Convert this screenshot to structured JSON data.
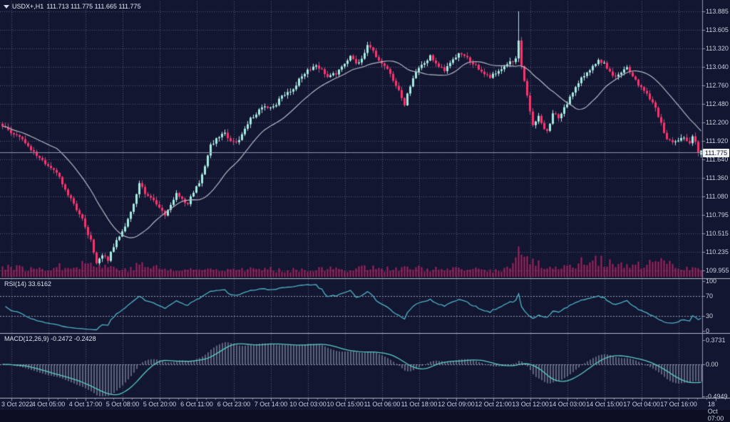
{
  "window": {
    "symbol": "USDX+,H1",
    "ohlc_text": "111.713 111.775 111.665 111.775"
  },
  "chart": {
    "current_price": "111.775"
  },
  "price_axis": {
    "labels": [
      "113.885",
      "113.605",
      "113.320",
      "113.040",
      "112.760",
      "112.480",
      "112.200",
      "111.920",
      "111.640",
      "111.360",
      "111.080",
      "110.795",
      "110.515",
      "110.235",
      "109.955"
    ]
  },
  "time_axis": {
    "labels": [
      "3 Oct 2022",
      "4 Oct 05:00",
      "4 Oct 17:00",
      "5 Oct 08:00",
      "5 Oct 20:00",
      "6 Oct 11:00",
      "6 Oct 23:00",
      "7 Oct 14:00",
      "10 Oct 03:00",
      "10 Oct 15:00",
      "11 Oct 06:00",
      "11 Oct 18:00",
      "12 Oct 09:00",
      "12 Oct 21:00",
      "13 Oct 12:00",
      "14 Oct 03:00",
      "14 Oct 15:00",
      "17 Oct 04:00",
      "17 Oct 16:00",
      "18 Oct 07:00"
    ]
  },
  "rsi": {
    "label": "RSI(14) 33.6162",
    "scale": [
      {
        "label": "100",
        "value": 100
      },
      {
        "label": "70",
        "value": 70
      },
      {
        "label": "30",
        "value": 30
      },
      {
        "label": "0",
        "value": 0
      }
    ],
    "levels": [
      70,
      30
    ]
  },
  "macd": {
    "label": "MACD(12,26,9) -0.2472 -0.2428",
    "scale": [
      {
        "label": "0.3731",
        "value": 0.3731
      },
      {
        "label": "0.00",
        "value": 0
      },
      {
        "label": "-0.4949",
        "value": -0.4949
      }
    ]
  },
  "colors": {
    "background": "#121631",
    "grid": "#6a7190",
    "level_line": "#9aa0b6",
    "bull_candle": "#a9e9e1",
    "bear_candle": "#f2376f",
    "volume": "#a8215e",
    "ma_line": "#b5b8c4",
    "bid_line": "#8e94ae",
    "rsi_line": "#4fb3c8",
    "macd_line": "#5accc6",
    "macd_hist": "#a9afc4",
    "separator": "#b6b9c8",
    "scale_border": "#9298b0",
    "axis_text": "#ccd1e0",
    "badge_bg": "#f2f3f6",
    "badge_text": "#12142a"
  },
  "chart_data": {
    "type": "candlestick",
    "symbol": "USDX+",
    "timeframe": "H1",
    "x_range": [
      "3 Oct 2022",
      "18 Oct 07:00"
    ],
    "y_range": [
      109.955,
      113.885
    ],
    "candles_count": 246,
    "note": "hourly candles; close values sampled from chart as keyframes [index, close], intermediate candles interpolated",
    "close_keyframes": [
      [
        0,
        112.15
      ],
      [
        4,
        112.02
      ],
      [
        8,
        111.9
      ],
      [
        12,
        111.68
      ],
      [
        16,
        111.55
      ],
      [
        19,
        111.45
      ],
      [
        22,
        111.18
      ],
      [
        25,
        110.95
      ],
      [
        28,
        110.72
      ],
      [
        31,
        110.4
      ],
      [
        33,
        110.08
      ],
      [
        35,
        110.18
      ],
      [
        37,
        110.12
      ],
      [
        40,
        110.42
      ],
      [
        43,
        110.62
      ],
      [
        46,
        110.95
      ],
      [
        48,
        111.3
      ],
      [
        50,
        111.12
      ],
      [
        53,
        111.02
      ],
      [
        57,
        110.8
      ],
      [
        59,
        110.95
      ],
      [
        61,
        111.12
      ],
      [
        63,
        111.02
      ],
      [
        65,
        110.98
      ],
      [
        67,
        111.15
      ],
      [
        69,
        111.3
      ],
      [
        71,
        111.55
      ],
      [
        73,
        111.85
      ],
      [
        76,
        112.0
      ],
      [
        78,
        112.02
      ],
      [
        80,
        111.92
      ],
      [
        82,
        111.88
      ],
      [
        85,
        112.1
      ],
      [
        87,
        112.25
      ],
      [
        90,
        112.38
      ],
      [
        92,
        112.45
      ],
      [
        95,
        112.42
      ],
      [
        97,
        112.55
      ],
      [
        100,
        112.65
      ],
      [
        102,
        112.72
      ],
      [
        105,
        112.9
      ],
      [
        107,
        113.0
      ],
      [
        110,
        113.05
      ],
      [
        112,
        113.02
      ],
      [
        114,
        112.88
      ],
      [
        117,
        112.95
      ],
      [
        119,
        113.05
      ],
      [
        122,
        113.2
      ],
      [
        124,
        113.1
      ],
      [
        126,
        113.15
      ],
      [
        128,
        113.38
      ],
      [
        130,
        113.28
      ],
      [
        132,
        113.15
      ],
      [
        134,
        113.05
      ],
      [
        136,
        112.92
      ],
      [
        139,
        112.7
      ],
      [
        141,
        112.48
      ],
      [
        143,
        112.75
      ],
      [
        145,
        112.98
      ],
      [
        148,
        113.1
      ],
      [
        150,
        113.2
      ],
      [
        153,
        113.05
      ],
      [
        155,
        113.0
      ],
      [
        157,
        113.12
      ],
      [
        159,
        113.2
      ],
      [
        161,
        113.25
      ],
      [
        163,
        113.18
      ],
      [
        165,
        113.1
      ],
      [
        168,
        112.95
      ],
      [
        171,
        112.88
      ],
      [
        174,
        113.0
      ],
      [
        177,
        113.08
      ],
      [
        180,
        113.15
      ],
      [
        181,
        113.45
      ],
      [
        182,
        113.05
      ],
      [
        183,
        112.85
      ],
      [
        184,
        112.6
      ],
      [
        186,
        112.15
      ],
      [
        188,
        112.28
      ],
      [
        190,
        112.12
      ],
      [
        191,
        112.05
      ],
      [
        193,
        112.35
      ],
      [
        195,
        112.28
      ],
      [
        197,
        112.42
      ],
      [
        199,
        112.58
      ],
      [
        201,
        112.72
      ],
      [
        203,
        112.88
      ],
      [
        205,
        112.95
      ],
      [
        207,
        113.05
      ],
      [
        209,
        113.15
      ],
      [
        211,
        113.1
      ],
      [
        213,
        112.95
      ],
      [
        215,
        112.88
      ],
      [
        217,
        112.95
      ],
      [
        219,
        113.02
      ],
      [
        221,
        112.88
      ],
      [
        223,
        112.78
      ],
      [
        225,
        112.68
      ],
      [
        227,
        112.55
      ],
      [
        229,
        112.42
      ],
      [
        231,
        112.18
      ],
      [
        233,
        111.95
      ],
      [
        235,
        111.88
      ],
      [
        237,
        111.92
      ],
      [
        239,
        111.98
      ],
      [
        241,
        111.9
      ],
      [
        242,
        112.0
      ],
      [
        243,
        111.92
      ],
      [
        244,
        111.72
      ],
      [
        245,
        111.775
      ]
    ],
    "spike": {
      "index": 181,
      "high": 113.885
    },
    "last_candle": {
      "open": 111.713,
      "high": 111.775,
      "low": 111.665,
      "close": 111.775
    },
    "volume_keyframes": [
      [
        0,
        0.45
      ],
      [
        10,
        0.3
      ],
      [
        20,
        0.4
      ],
      [
        30,
        0.55
      ],
      [
        34,
        0.45
      ],
      [
        45,
        0.3
      ],
      [
        48,
        0.5
      ],
      [
        60,
        0.25
      ],
      [
        70,
        0.3
      ],
      [
        80,
        0.35
      ],
      [
        90,
        0.3
      ],
      [
        100,
        0.28
      ],
      [
        110,
        0.32
      ],
      [
        120,
        0.3
      ],
      [
        128,
        0.4
      ],
      [
        136,
        0.3
      ],
      [
        145,
        0.35
      ],
      [
        155,
        0.28
      ],
      [
        165,
        0.3
      ],
      [
        172,
        0.25
      ],
      [
        178,
        0.35
      ],
      [
        181,
        1.0
      ],
      [
        183,
        0.85
      ],
      [
        186,
        0.55
      ],
      [
        190,
        0.45
      ],
      [
        196,
        0.35
      ],
      [
        202,
        0.55
      ],
      [
        207,
        0.8
      ],
      [
        210,
        0.65
      ],
      [
        215,
        0.45
      ],
      [
        220,
        0.4
      ],
      [
        226,
        0.5
      ],
      [
        231,
        0.6
      ],
      [
        235,
        0.45
      ],
      [
        240,
        0.4
      ],
      [
        244,
        0.3
      ],
      [
        245,
        0.25
      ]
    ],
    "ma_period": 20,
    "rsi": {
      "period": 14,
      "last_value": 33.6162,
      "range": [
        0,
        100
      ],
      "levels": [
        30,
        70
      ]
    },
    "macd": {
      "fast": 12,
      "slow": 26,
      "signal": 9,
      "last_macd": -0.2472,
      "last_signal": -0.2428,
      "max": 0.3731,
      "min": -0.4949
    }
  }
}
